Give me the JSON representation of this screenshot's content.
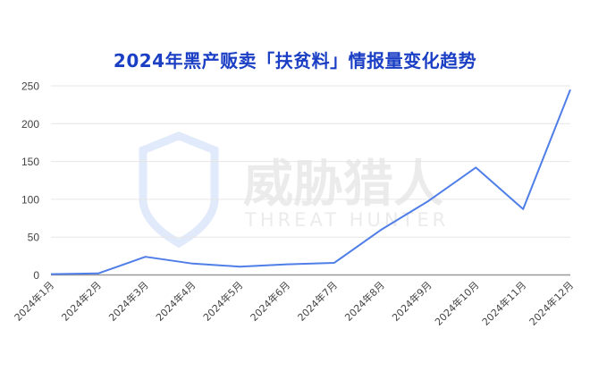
{
  "watermark": {
    "cn": "威胁猎人",
    "en": "THREAT HUNTER"
  },
  "colors": {
    "line": "#4f7ee8",
    "title": "#1b3fc4",
    "grid": "#e6e6e6",
    "axis": "#999999",
    "watermark": "#c9d8f5"
  },
  "chart_data": {
    "type": "line",
    "title": "2024年黑产贩卖「扶贫料」情报量变化趋势",
    "xlabel": "",
    "ylabel": "",
    "categories": [
      "2024年1月",
      "2024年2月",
      "2024年3月",
      "2024年4月",
      "2024年5月",
      "2024年6月",
      "2024年7月",
      "2024年8月",
      "2024年9月",
      "2024年10月",
      "2024年11月",
      "2024年12月"
    ],
    "values": [
      1,
      2,
      24,
      15,
      11,
      14,
      16,
      60,
      98,
      142,
      87,
      245
    ],
    "ylim": [
      0,
      250
    ],
    "yticks": [
      "0",
      "50",
      "100",
      "150",
      "200",
      "250"
    ],
    "grid": true,
    "legend": "none"
  }
}
